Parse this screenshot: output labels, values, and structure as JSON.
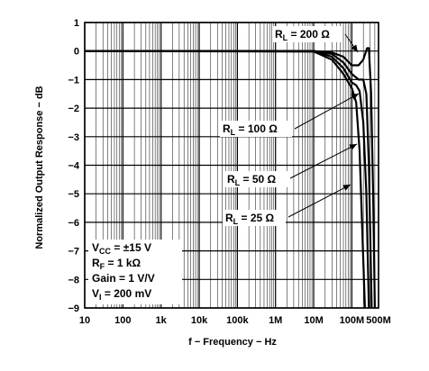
{
  "chart_data": {
    "type": "line",
    "title": "",
    "xlabel": "f − Frequency − Hz",
    "ylabel": "Normalized Output Response − dB",
    "x_scale": "log",
    "xlim": [
      10,
      500000000
    ],
    "ylim": [
      -9,
      1
    ],
    "grid": true,
    "x_ticks": [
      {
        "value": 10,
        "label": "10"
      },
      {
        "value": 100,
        "label": "100"
      },
      {
        "value": 1000,
        "label": "1k"
      },
      {
        "value": 10000,
        "label": "10k"
      },
      {
        "value": 100000,
        "label": "100k"
      },
      {
        "value": 1000000,
        "label": "1M"
      },
      {
        "value": 10000000,
        "label": "10M"
      },
      {
        "value": 100000000,
        "label": "100M"
      },
      {
        "value": 500000000,
        "label": "500M"
      }
    ],
    "y_ticks": [
      {
        "value": 1,
        "label": "1"
      },
      {
        "value": 0,
        "label": "0"
      },
      {
        "value": -1,
        "label": "−1"
      },
      {
        "value": -2,
        "label": "−2"
      },
      {
        "value": -3,
        "label": "−3"
      },
      {
        "value": -4,
        "label": "−4"
      },
      {
        "value": -5,
        "label": "−5"
      },
      {
        "value": -6,
        "label": "−6"
      },
      {
        "value": -7,
        "label": "−7"
      },
      {
        "value": -8,
        "label": "−8"
      },
      {
        "value": -9,
        "label": "−9"
      }
    ],
    "series": [
      {
        "name": "R_L = 200 Ω",
        "x": [
          10,
          10000000,
          30000000,
          60000000,
          100000000,
          150000000,
          200000000,
          250000000,
          280000000,
          320000000,
          360000000,
          400000000
        ],
        "y": [
          0,
          0,
          -0.05,
          -0.2,
          -0.5,
          -0.5,
          -0.3,
          0.1,
          0.1,
          -1.5,
          -5,
          -9
        ]
      },
      {
        "name": "R_L = 100 Ω",
        "x": [
          10,
          10000000,
          30000000,
          60000000,
          100000000,
          150000000,
          200000000,
          240000000,
          280000000,
          330000000
        ],
        "y": [
          0,
          0,
          -0.1,
          -0.4,
          -0.8,
          -1.0,
          -1.0,
          -1.5,
          -4,
          -9
        ]
      },
      {
        "name": "R_L = 50 Ω",
        "x": [
          10,
          10000000,
          30000000,
          60000000,
          100000000,
          130000000,
          160000000,
          200000000,
          240000000,
          280000000
        ],
        "y": [
          0,
          0,
          -0.2,
          -0.6,
          -1.1,
          -1.2,
          -1.4,
          -2.5,
          -5,
          -9
        ]
      },
      {
        "name": "R_L = 25 Ω",
        "x": [
          10,
          10000000,
          30000000,
          60000000,
          100000000,
          130000000,
          160000000,
          190000000,
          220000000
        ],
        "y": [
          0,
          -0.02,
          -0.3,
          -0.8,
          -1.3,
          -1.8,
          -3.5,
          -6.5,
          -9
        ]
      }
    ],
    "annotations": [
      {
        "prefix": "R",
        "sub": "L",
        "suffix": " = 200 Ω"
      },
      {
        "prefix": "R",
        "sub": "L",
        "suffix": " = 100 Ω"
      },
      {
        "prefix": "R",
        "sub": "L",
        "suffix": " = 50 Ω"
      },
      {
        "prefix": "R",
        "sub": "L",
        "suffix": " = 25 Ω"
      }
    ],
    "conditions": [
      {
        "prefix": "V",
        "sub": "CC",
        "suffix": " = ±15 V"
      },
      {
        "prefix": "R",
        "sub": "F",
        "suffix": " = 1 kΩ"
      },
      {
        "prefix": "Gain = 1 V/V",
        "sub": "",
        "suffix": ""
      },
      {
        "prefix": "V",
        "sub": "I",
        "suffix": " = 200 mV"
      }
    ]
  }
}
